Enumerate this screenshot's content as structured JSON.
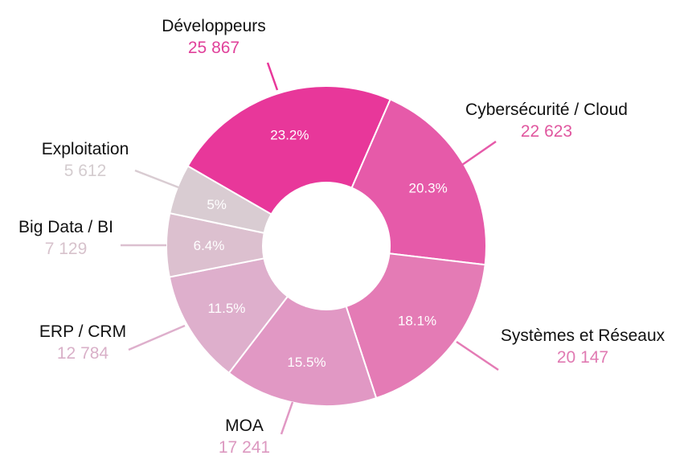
{
  "chart_data": {
    "type": "pie",
    "donut": true,
    "categories": [
      "Développeurs",
      "Cybersécurité / Cloud",
      "Systèmes et Réseaux",
      "MOA",
      "ERP / CRM",
      "Big Data / BI",
      "Exploitation"
    ],
    "values": [
      25867,
      22623,
      20147,
      17241,
      12784,
      7129,
      5612
    ],
    "value_labels": [
      "25 867",
      "22 623",
      "20 147",
      "17 241",
      "12 784",
      "7 129",
      "5 612"
    ],
    "percent_labels": [
      "23.2%",
      "20.3%",
      "18.1%",
      "15.5%",
      "11.5%",
      "6.4%",
      "5%"
    ],
    "colors": [
      "#e8379a",
      "#e65aa9",
      "#e47bb5",
      "#e198c4",
      "#deafcc",
      "#dcc0cf",
      "#d9ccd2"
    ],
    "value_label_colors": [
      "#e0409a",
      "#e0579f",
      "#e07ab2",
      "#dc98c0",
      "#d9b0c8",
      "#d7c2cc",
      "#d4cccf"
    ],
    "percent_label_color": "#ffffff"
  }
}
